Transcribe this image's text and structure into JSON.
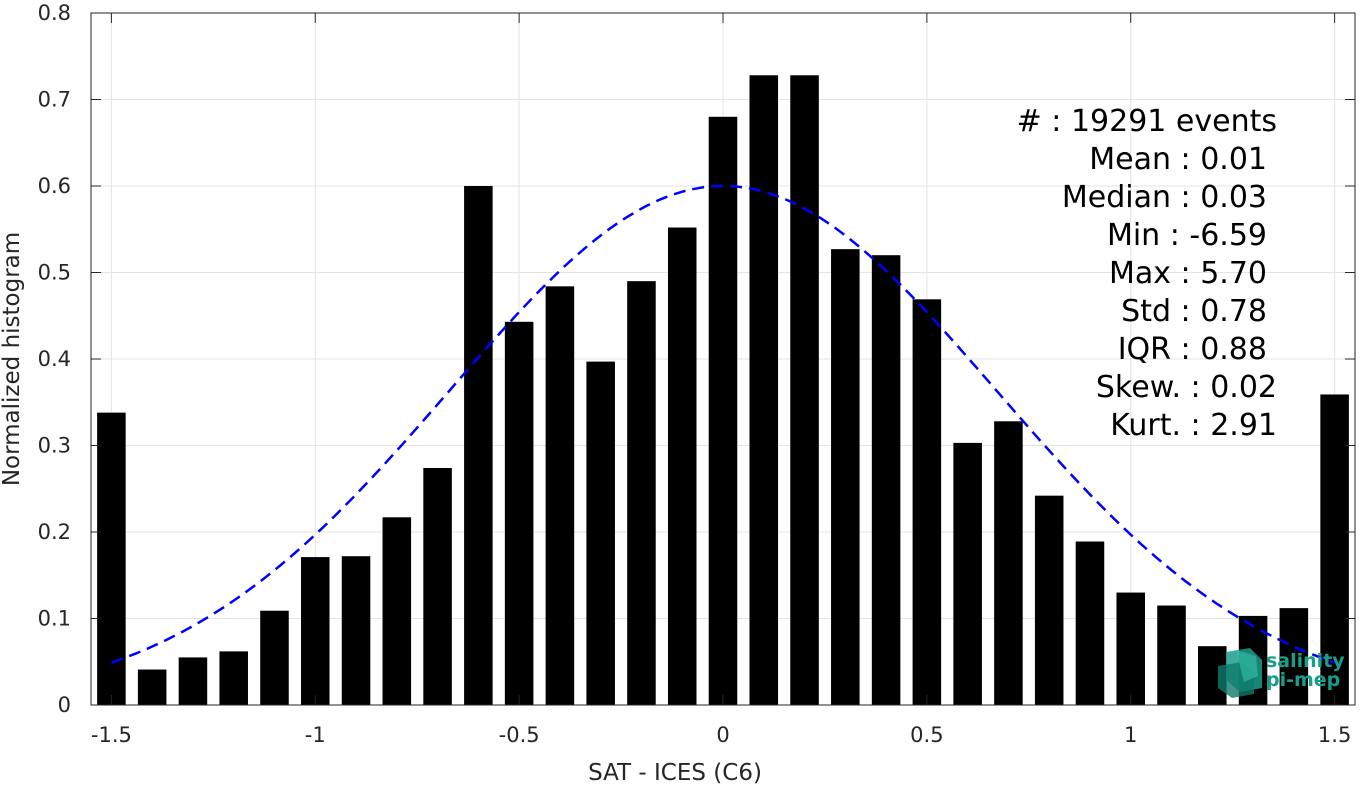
{
  "chart_data": {
    "type": "bar",
    "xlabel": "SAT - ICES (C6)",
    "ylabel": "Normalized histogram",
    "xlim": [
      -1.55,
      1.55
    ],
    "ylim": [
      0,
      0.8
    ],
    "xticks": [
      -1.5,
      -1,
      -0.5,
      0,
      0.5,
      1,
      1.5
    ],
    "xtick_labels": [
      "-1.5",
      "-1",
      "-0.5",
      "0",
      "0.5",
      "1",
      "1.5"
    ],
    "yticks": [
      0,
      0.1,
      0.2,
      0.3,
      0.4,
      0.5,
      0.6,
      0.7,
      0.8
    ],
    "ytick_labels": [
      "0",
      "0.1",
      "0.2",
      "0.3",
      "0.4",
      "0.5",
      "0.6",
      "0.7",
      "0.8"
    ],
    "grid": true,
    "bar_color": "#000000",
    "bar_width": 0.07,
    "bins": [
      -1.5,
      -1.4,
      -1.3,
      -1.2,
      -1.1,
      -1.0,
      -0.9,
      -0.8,
      -0.7,
      -0.6,
      -0.5,
      -0.4,
      -0.3,
      -0.2,
      -0.1,
      0.0,
      0.1,
      0.2,
      0.3,
      0.4,
      0.5,
      0.6,
      0.7,
      0.8,
      0.9,
      1.0,
      1.1,
      1.2,
      1.3,
      1.4,
      1.5
    ],
    "values": [
      0.338,
      0.041,
      0.055,
      0.062,
      0.109,
      0.171,
      0.172,
      0.217,
      0.274,
      0.6,
      0.443,
      0.484,
      0.397,
      0.49,
      0.552,
      0.68,
      0.728,
      0.728,
      0.527,
      0.52,
      0.469,
      0.303,
      0.328,
      0.242,
      0.189,
      0.13,
      0.115,
      0.068,
      0.103,
      0.112,
      0.359
    ],
    "fit_curve": {
      "type": "normal",
      "mean": 0.0,
      "std": 0.67,
      "peak": 0.6,
      "x_range": [
        -1.5,
        1.5
      ],
      "color": "#0000ff",
      "style": "dashed"
    },
    "stats_lines": [
      "#  : 19291 events",
      "Mean : 0.01",
      "Median : 0.03",
      "Min : -6.59",
      "Max : 5.70",
      "Std : 0.78",
      "IQR : 0.88",
      "Skew. : 0.02",
      "Kurt. : 2.91"
    ]
  },
  "logo": {
    "line1": "salinity",
    "line2": "pi-mep",
    "color": "#1a9e8c"
  }
}
